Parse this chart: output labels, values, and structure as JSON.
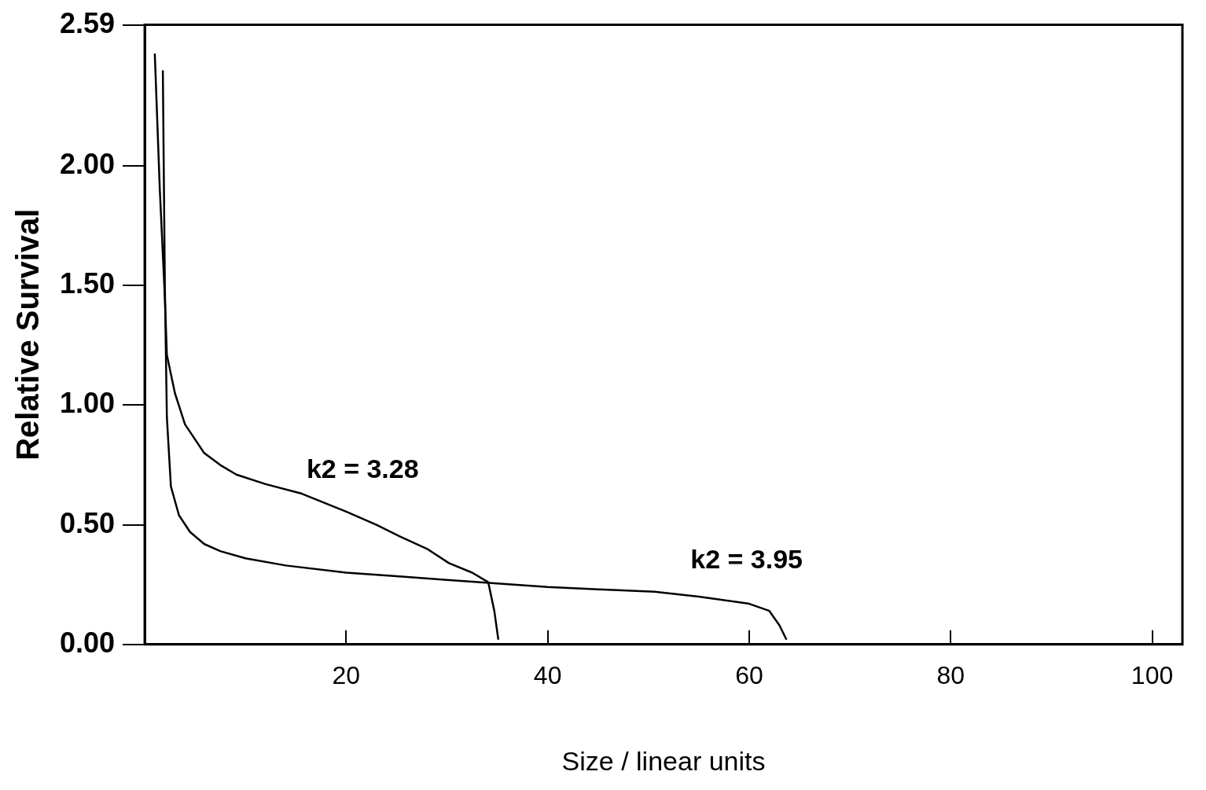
{
  "chart_data": {
    "type": "line",
    "xlabel": "Size / linear units",
    "ylabel": "Relative Survival",
    "xlim": [
      0,
      103
    ],
    "ylim": [
      0,
      2.59
    ],
    "xticks": [
      20,
      40,
      60,
      80,
      100
    ],
    "yticks": [
      {
        "value": 0,
        "label": "0.00"
      },
      {
        "value": 0.5,
        "label": "0.50"
      },
      {
        "value": 1,
        "label": "1.00"
      },
      {
        "value": 1.5,
        "label": "1.50"
      },
      {
        "value": 2,
        "label": "2.00"
      },
      2.59
    ],
    "marker": "none",
    "line_style": "solid",
    "series": [
      {
        "color": "#000000",
        "x": [
          1,
          1.5,
          2,
          2.2,
          3,
          4,
          5.9,
          7.5,
          9.1,
          12,
          15.6,
          20,
          23,
          25.4,
          28,
          30.2,
          32.5,
          34.1,
          34.7,
          35.1
        ],
        "values": [
          2.47,
          1.9,
          1.45,
          1.21,
          1.05,
          0.92,
          0.8,
          0.75,
          0.71,
          0.67,
          0.63,
          0.555,
          0.5,
          0.45,
          0.4,
          0.34,
          0.3,
          0.26,
          0.14,
          0.02
        ]
      },
      {
        "color": "#000000",
        "x": [
          1.8,
          2,
          2.2,
          2.6,
          3.4,
          4.5,
          5.9,
          7.5,
          10,
          14,
          20,
          25,
          30,
          35,
          40,
          45,
          50.6,
          55,
          60,
          62,
          63,
          63.7
        ],
        "values": [
          2.4,
          1.5,
          0.95,
          0.66,
          0.54,
          0.47,
          0.42,
          0.39,
          0.36,
          0.33,
          0.3,
          0.285,
          0.27,
          0.255,
          0.24,
          0.23,
          0.22,
          0.2,
          0.17,
          0.14,
          0.08,
          0.02
        ]
      }
    ],
    "annotations": [
      "k2 = 3.28",
      "k2 = 3.95"
    ]
  }
}
